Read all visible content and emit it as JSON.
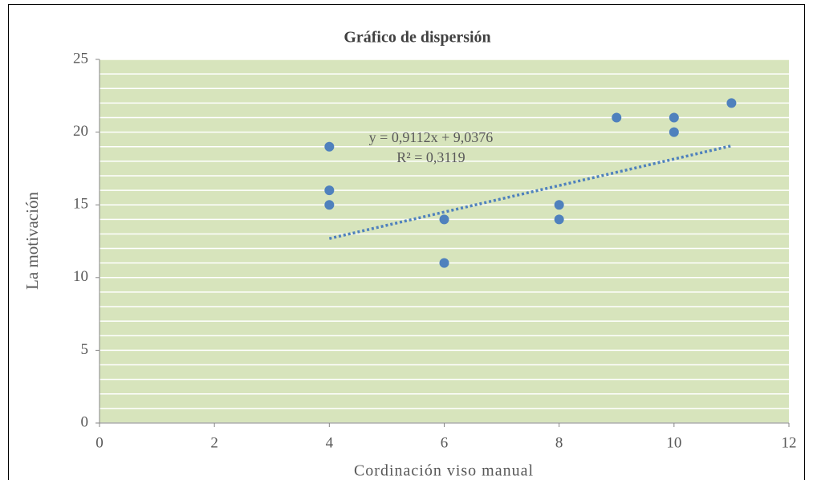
{
  "chart_data": {
    "type": "scatter",
    "title": "Gráfico de dispersión",
    "x_label": "Cordinación viso manual",
    "y_label": "La motivación",
    "series": [
      {
        "name": "La motivación",
        "color": "#4f81bd",
        "x": [
          4,
          4,
          4,
          6,
          6,
          8,
          8,
          9,
          10,
          10,
          11
        ],
        "values": [
          19,
          16,
          15,
          14,
          11,
          15,
          14,
          21,
          21,
          20,
          22
        ]
      }
    ],
    "trendline": {
      "slope": 0.9112,
      "intercept": 9.0376,
      "label": "y = 0,9112x  + 9,0376",
      "r2_label": "R² = 0,3119",
      "color": "#4f81bd"
    },
    "xlim": [
      0,
      12
    ],
    "xticks": [
      0,
      2,
      4,
      6,
      8,
      10,
      12
    ],
    "ylim": [
      0,
      25
    ],
    "yticks": [
      0,
      5,
      10,
      15,
      20,
      25
    ],
    "grid": true,
    "plot_background": "#d7e4bc"
  }
}
